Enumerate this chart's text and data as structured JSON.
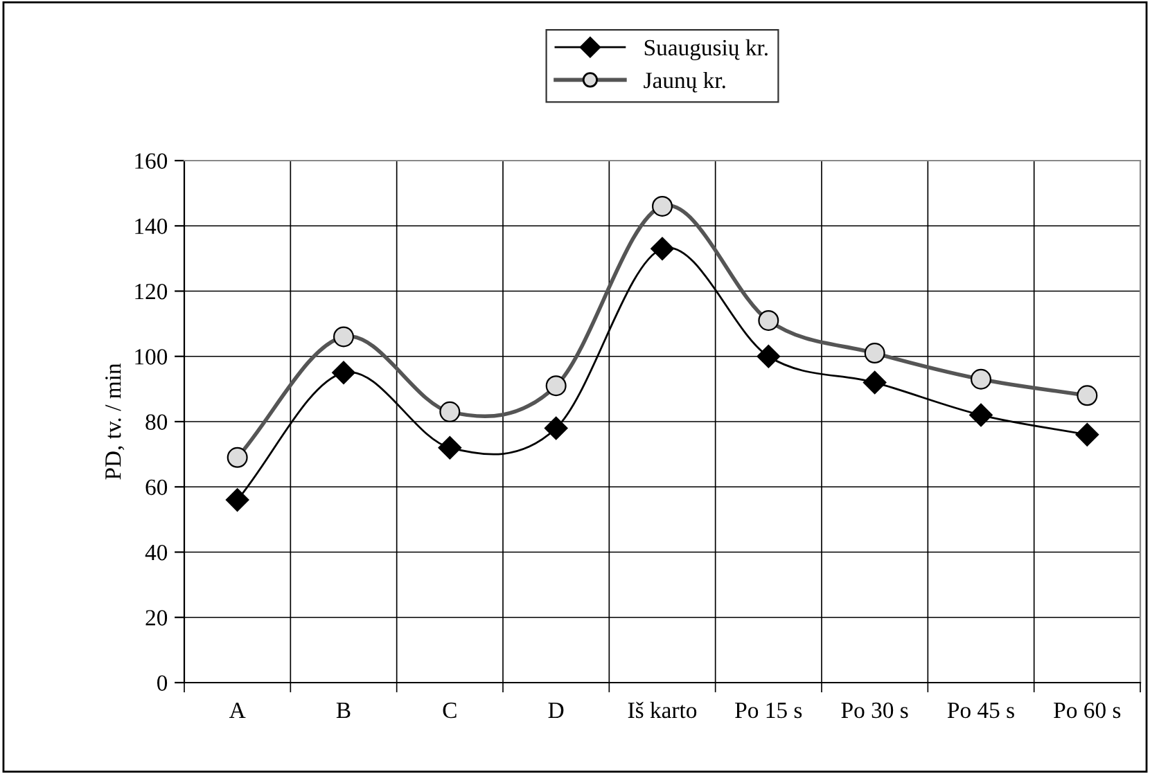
{
  "chart_data": {
    "type": "line",
    "ylabel": "PD, tv. / min",
    "categories": [
      "A",
      "B",
      "C",
      "D",
      "Iš karto",
      "Po 15 s",
      "Po 30 s",
      "Po 45 s",
      "Po 60 s"
    ],
    "series": [
      {
        "name": "Suaugusių kr.",
        "color": "#000000",
        "marker": "diamond",
        "values": [
          56,
          95,
          72,
          78,
          133,
          100,
          92,
          82,
          76
        ]
      },
      {
        "name": "Jaunų kr.",
        "color": "#555555",
        "marker": "circle",
        "values": [
          69,
          106,
          83,
          91,
          146,
          111,
          101,
          93,
          88
        ]
      }
    ],
    "ylim": [
      0,
      160
    ],
    "yticks": [
      0,
      20,
      40,
      60,
      80,
      100,
      120,
      140,
      160
    ],
    "grid": true,
    "legend": "top",
    "line_style": "solid"
  }
}
